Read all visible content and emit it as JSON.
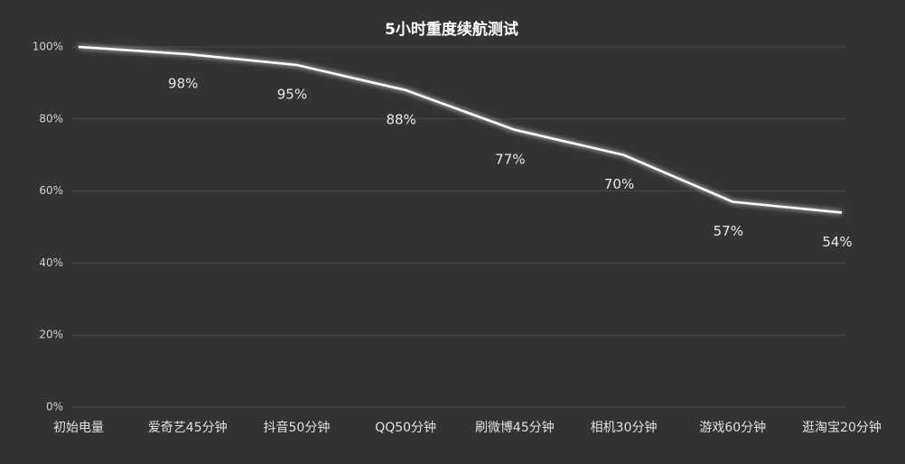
{
  "chart_data": {
    "type": "line",
    "title": "5小时重度续航测试",
    "categories": [
      "初始电量",
      "爱奇艺45分钟",
      "抖音50分钟",
      "QQ50分钟",
      "刷微博45分钟",
      "相机30分钟",
      "游戏60分钟",
      "逛淘宝20分钟"
    ],
    "series": [
      {
        "color": "#ffffff",
        "values": [
          100,
          98,
          95,
          88,
          77,
          70,
          57,
          54
        ],
        "value_labels": [
          null,
          "98%",
          "95%",
          "88%",
          "77%",
          "70%",
          "57%",
          "54%"
        ]
      }
    ],
    "ylim": [
      0,
      100
    ],
    "yticks": [
      {
        "value": 0,
        "label": "0%"
      },
      {
        "value": 20,
        "label": "20%"
      },
      {
        "value": 40,
        "label": "40%"
      },
      {
        "value": 60,
        "label": "60%"
      },
      {
        "value": 80,
        "label": "80%"
      },
      {
        "value": 100,
        "label": "100%"
      }
    ],
    "grid": true
  }
}
